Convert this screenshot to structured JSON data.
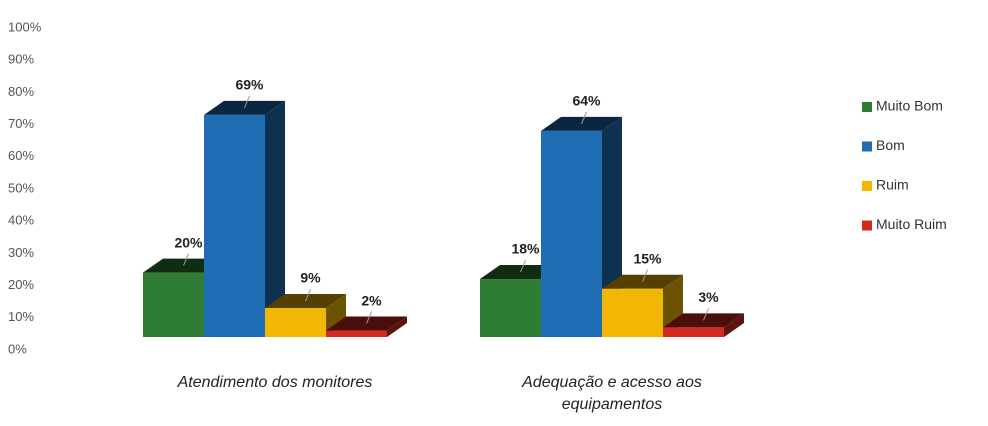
{
  "chart_data": {
    "type": "bar3d",
    "categories": [
      "Atendimento dos monitores",
      "Adequação e acesso aos equipamentos"
    ],
    "series": [
      {
        "name": "Muito Bom",
        "color": "#2f7d34",
        "values": [
          20,
          18
        ],
        "value_labels": [
          "20%",
          "18%"
        ]
      },
      {
        "name": "Bom",
        "color": "#1f6db3",
        "values": [
          69,
          64
        ],
        "value_labels": [
          "69%",
          "64%"
        ]
      },
      {
        "name": "Ruim",
        "color": "#f2b705",
        "values": [
          9,
          15
        ],
        "value_labels": [
          "9%",
          "15%"
        ]
      },
      {
        "name": "Muito Ruim",
        "color": "#d32a1f",
        "values": [
          2,
          3
        ],
        "value_labels": [
          "2%",
          "3%"
        ]
      }
    ],
    "ylim": [
      0,
      100
    ],
    "yticks": [
      {
        "value": 0,
        "label": "0%"
      },
      {
        "value": 10,
        "label": "10%"
      },
      {
        "value": 20,
        "label": "20%"
      },
      {
        "value": 30,
        "label": "30%"
      },
      {
        "value": 40,
        "label": "40%"
      },
      {
        "value": 50,
        "label": "50%"
      },
      {
        "value": 60,
        "label": "60%"
      },
      {
        "value": 70,
        "label": "70%"
      },
      {
        "value": 80,
        "label": "80%"
      },
      {
        "value": 90,
        "label": "90%"
      },
      {
        "value": 100,
        "label": "100%"
      }
    ],
    "legend": "right"
  }
}
